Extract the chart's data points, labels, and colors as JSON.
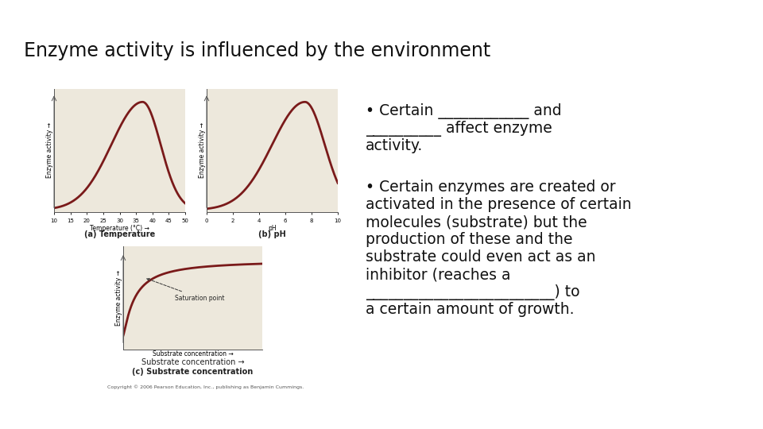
{
  "title": "Enzyme activity is influenced by the environment",
  "title_fontsize": 17,
  "background_color": "#ffffff",
  "graph_bg": "#ede8dc",
  "curve_color": "#7a1a1a",
  "curve_linewidth": 2.0,
  "axis_label_fontsize": 5.5,
  "sublabel_fontsize": 7.0,
  "text_fontsize": 13.5,
  "bullet1_line1": "• Certain ____________ and",
  "bullet1_line2": "__________ affect enzyme",
  "bullet1_line3": "activity.",
  "bullet2_line1": "• Certain enzymes are created or",
  "bullet2_line2": "activated in the presence of certain",
  "bullet2_line3": "molecules (substrate) but the",
  "bullet2_line4": "production of these and the",
  "bullet2_line5": "substrate could even act as an",
  "bullet2_line6": "inhibitor (reaches a",
  "bullet2_line7": "_________________________) to",
  "bullet2_line8": "a certain amount of growth.",
  "copyright": "Copyright © 2006 Pearson Education, Inc., publishing as Benjamin Cummings."
}
